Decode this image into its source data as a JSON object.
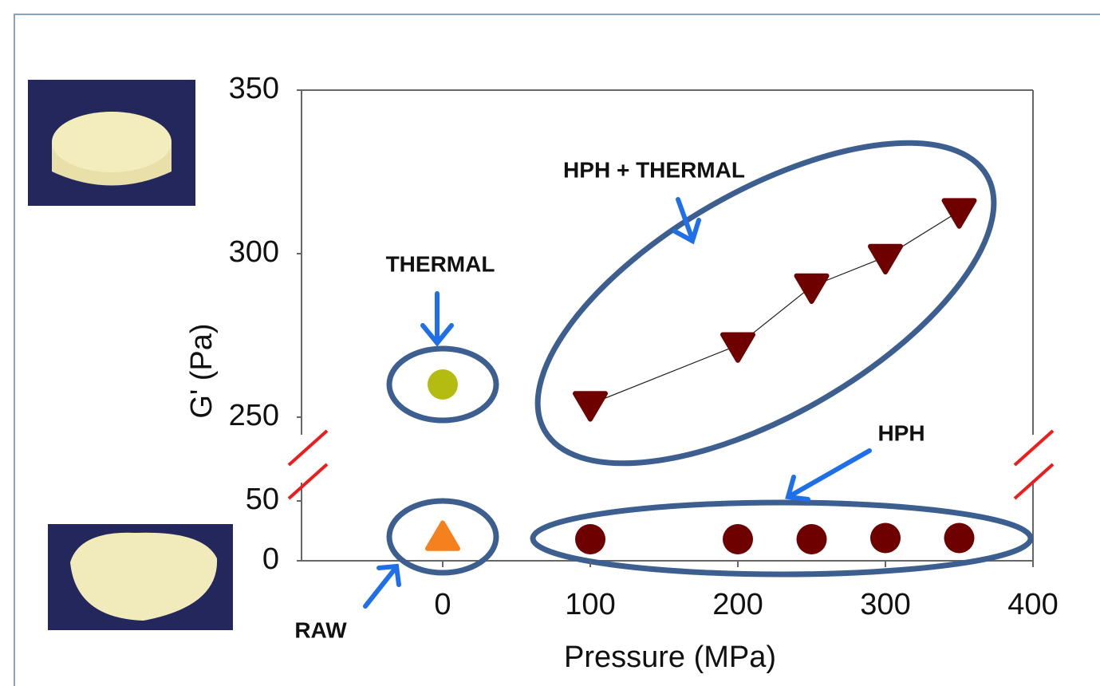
{
  "chart_data": [
    {
      "type": "scatter",
      "ylabel": "G' (Pa)",
      "xlim": [
        -100,
        400
      ],
      "ylim": [
        250,
        350
      ],
      "yticks": [
        250,
        300,
        350
      ],
      "series": [
        {
          "name": "THERMAL",
          "color": "#b4bc12",
          "marker": "circle",
          "x": [
            0
          ],
          "values": [
            260
          ]
        },
        {
          "name": "HPH + THERMAL",
          "color": "#6e0000",
          "marker": "triangle-down",
          "trendline": true,
          "x": [
            100,
            200,
            250,
            300,
            350
          ],
          "values": [
            254,
            272,
            290,
            299,
            313
          ]
        }
      ]
    },
    {
      "type": "scatter",
      "xlabel": "Pressure (MPa)",
      "xlim": [
        -100,
        400
      ],
      "xticks": [
        0,
        100,
        200,
        300,
        400
      ],
      "ylim": [
        0,
        50
      ],
      "yticks": [
        0,
        50
      ],
      "series": [
        {
          "name": "RAW",
          "color": "#f5801e",
          "marker": "triangle",
          "x": [
            0
          ],
          "values": [
            19
          ]
        },
        {
          "name": "HPH",
          "color": "#6e0000",
          "marker": "circle",
          "x": [
            100,
            200,
            250,
            300,
            350
          ],
          "values": [
            18,
            18,
            18,
            19,
            19
          ]
        }
      ]
    }
  ]
}
